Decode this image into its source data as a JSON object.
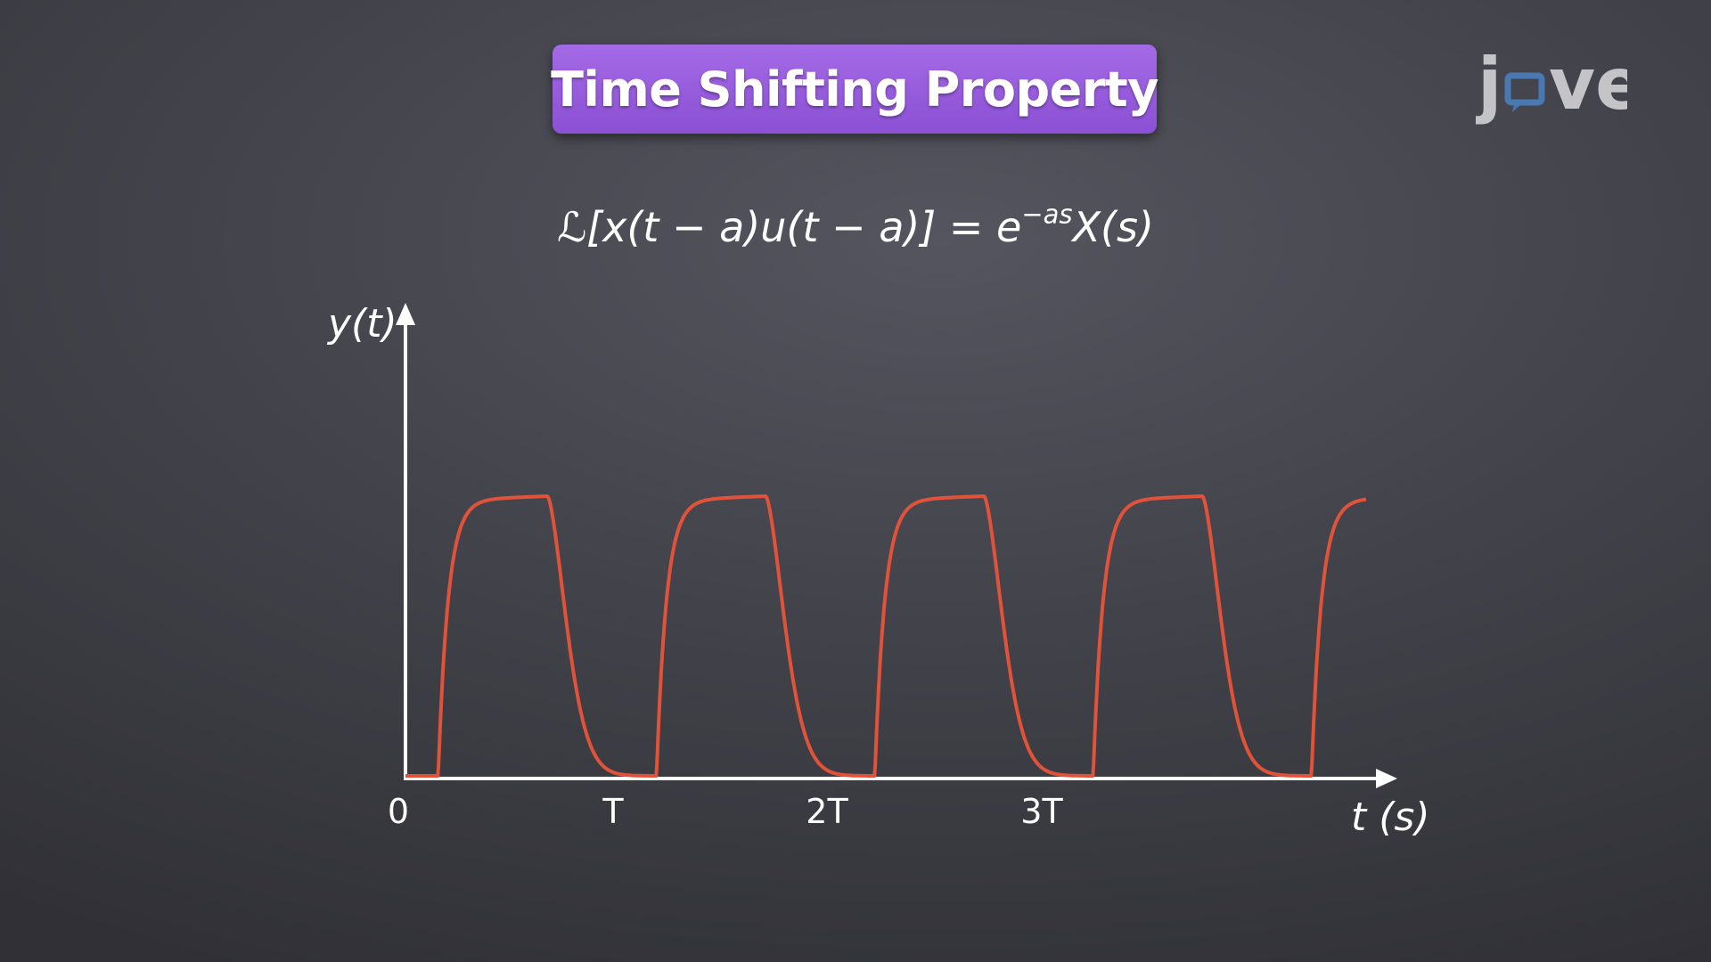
{
  "title": "Time Shifting Property",
  "logo": {
    "text": "jove",
    "accent": "#4a78b0"
  },
  "formula": {
    "lhs": "ℒ[x(t − a)u(t − a)] = e",
    "exponent": "−as",
    "rhs": "X(s)"
  },
  "chart_data": {
    "type": "line",
    "ylabel": "y(t)",
    "xlabel": "t (s)",
    "tick_labels": [
      "0",
      "T",
      "2T",
      "3T"
    ],
    "color": "#e0533a",
    "period": 1,
    "pulse_start": 0.15,
    "pulse_width": 0.5,
    "xlim": [
      0,
      4.5
    ],
    "ylim": [
      0,
      1.1
    ],
    "pulse_count": 5
  },
  "colors": {
    "banner": "#9a5fe0",
    "waveform": "#e0533a",
    "axes": "#ffffff"
  }
}
